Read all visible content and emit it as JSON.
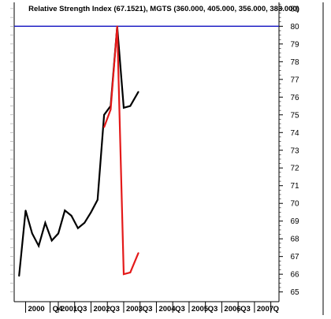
{
  "chart_data": {
    "type": "line",
    "title": "Relative Strength Index (67.1521), MGTS (360.000, 405.000, 356.000, 383.000)",
    "x_tick_labels": [
      "2000",
      "Q4",
      "2001",
      "Q3",
      "2002",
      "Q3",
      "2003",
      "Q3",
      "2004",
      "Q3",
      "2005",
      "Q3",
      "2006",
      "Q3",
      "2007",
      "Q"
    ],
    "x_tick_positions": [
      0.0,
      0.75,
      1.0,
      1.5,
      2.0,
      2.5,
      3.0,
      3.5,
      4.0,
      4.5,
      5.0,
      5.5,
      6.0,
      6.5,
      7.0,
      7.5
    ],
    "x_range": [
      -0.35,
      7.75
    ],
    "y_right_ticks": [
      65,
      66,
      67,
      68,
      69,
      70,
      71,
      72,
      73,
      74,
      75,
      76,
      77,
      78,
      79,
      80,
      81
    ],
    "y_range": [
      64.45,
      81.35
    ],
    "reference_line": {
      "y": 80,
      "color": "#1010c0"
    },
    "series": [
      {
        "color": "#000000",
        "points": [
          [
            -0.2,
            65.9
          ],
          [
            0.0,
            69.6
          ],
          [
            0.2,
            68.3
          ],
          [
            0.4,
            67.6
          ],
          [
            0.6,
            68.9
          ],
          [
            0.8,
            67.9
          ],
          [
            1.0,
            68.3
          ],
          [
            1.2,
            69.6
          ],
          [
            1.4,
            69.3
          ],
          [
            1.6,
            68.6
          ],
          [
            1.8,
            68.9
          ],
          [
            2.0,
            69.5
          ],
          [
            2.2,
            70.2
          ],
          [
            2.4,
            75.0
          ],
          [
            2.6,
            75.5
          ],
          [
            2.8,
            80.0
          ],
          [
            3.0,
            75.4
          ],
          [
            3.2,
            75.5
          ],
          [
            3.45,
            76.3
          ]
        ]
      },
      {
        "color": "#e41a1a",
        "points": [
          [
            2.4,
            74.3
          ],
          [
            2.6,
            75.3
          ],
          [
            2.8,
            80.0
          ],
          [
            3.0,
            66.0
          ],
          [
            3.2,
            66.1
          ],
          [
            3.45,
            67.2
          ]
        ]
      }
    ],
    "grid": false
  },
  "colors": {
    "background": "#ffffff",
    "axis": "#000000",
    "reference_line": "#1010c0"
  }
}
